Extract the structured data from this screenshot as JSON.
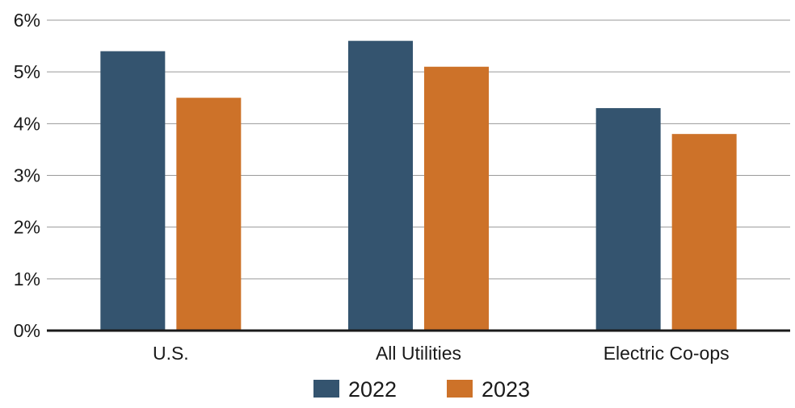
{
  "chart_data": {
    "type": "bar",
    "categories": [
      "U.S.",
      "All Utilities",
      "Electric Co-ops"
    ],
    "series": [
      {
        "name": "2022",
        "color": "#34546f",
        "values": [
          5.4,
          5.6,
          4.3
        ]
      },
      {
        "name": "2023",
        "color": "#cd7229",
        "values": [
          4.5,
          5.1,
          3.8
        ]
      }
    ],
    "ylim": [
      0,
      6
    ],
    "yticks": [
      0,
      1,
      2,
      3,
      4,
      5,
      6
    ],
    "ytick_labels": [
      "0%",
      "1%",
      "2%",
      "3%",
      "4%",
      "5%",
      "6%"
    ],
    "grid": true,
    "legend_position": "bottom-center"
  }
}
